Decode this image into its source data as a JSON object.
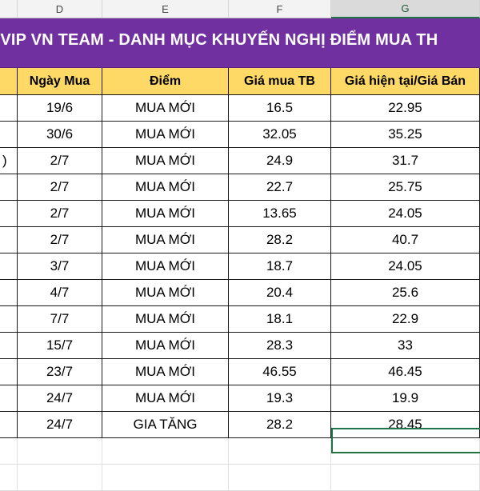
{
  "column_headers": [
    "D",
    "E",
    "F",
    "G"
  ],
  "title": "OM VIP VN TEAM - DANH MỤC KHUYẾN NGHỊ ĐIỂM MUA TH",
  "table_headers": {
    "col_c": "",
    "ngay_mua": "Ngày Mua",
    "diem": "Điểm",
    "gia_mua_tb": "Giá mua TB",
    "gia_hien_tai": "Giá hiện tại/Giá Bán"
  },
  "rows": [
    {
      "col_c": "",
      "ngay_mua": "19/6",
      "diem": "MUA MỚI",
      "gia_mua_tb": "16.5",
      "gia_hien_tai": "22.95"
    },
    {
      "col_c": "",
      "ngay_mua": "30/6",
      "diem": "MUA MỚI",
      "gia_mua_tb": "32.05",
      "gia_hien_tai": "35.25"
    },
    {
      "col_c": ")",
      "ngay_mua": "2/7",
      "diem": "MUA MỚI",
      "gia_mua_tb": "24.9",
      "gia_hien_tai": "31.7"
    },
    {
      "col_c": "",
      "ngay_mua": "2/7",
      "diem": "MUA MỚI",
      "gia_mua_tb": "22.7",
      "gia_hien_tai": "25.75"
    },
    {
      "col_c": "",
      "ngay_mua": "2/7",
      "diem": "MUA MỚI",
      "gia_mua_tb": "13.65",
      "gia_hien_tai": "24.05"
    },
    {
      "col_c": "",
      "ngay_mua": "2/7",
      "diem": "MUA MỚI",
      "gia_mua_tb": "28.2",
      "gia_hien_tai": "40.7"
    },
    {
      "col_c": "",
      "ngay_mua": "3/7",
      "diem": "MUA MỚI",
      "gia_mua_tb": "18.7",
      "gia_hien_tai": "24.05"
    },
    {
      "col_c": "",
      "ngay_mua": "4/7",
      "diem": "MUA MỚI",
      "gia_mua_tb": "20.4",
      "gia_hien_tai": "25.6"
    },
    {
      "col_c": "",
      "ngay_mua": "7/7",
      "diem": "MUA MỚI",
      "gia_mua_tb": "18.1",
      "gia_hien_tai": "22.9"
    },
    {
      "col_c": "",
      "ngay_mua": "15/7",
      "diem": "MUA MỚI",
      "gia_mua_tb": "28.3",
      "gia_hien_tai": "33"
    },
    {
      "col_c": "",
      "ngay_mua": "23/7",
      "diem": "MUA MỚI",
      "gia_mua_tb": "46.55",
      "gia_hien_tai": "46.45"
    },
    {
      "col_c": "",
      "ngay_mua": "24/7",
      "diem": "MUA MỚI",
      "gia_mua_tb": "19.3",
      "gia_hien_tai": "19.9"
    },
    {
      "col_c": "",
      "ngay_mua": "24/7",
      "diem": "GIA TĂNG",
      "gia_mua_tb": "28.2",
      "gia_hien_tai": "28.45"
    }
  ],
  "colors": {
    "title_background": "#7030a0",
    "header_background": "#ffd966",
    "selection_accent": "#217346"
  }
}
